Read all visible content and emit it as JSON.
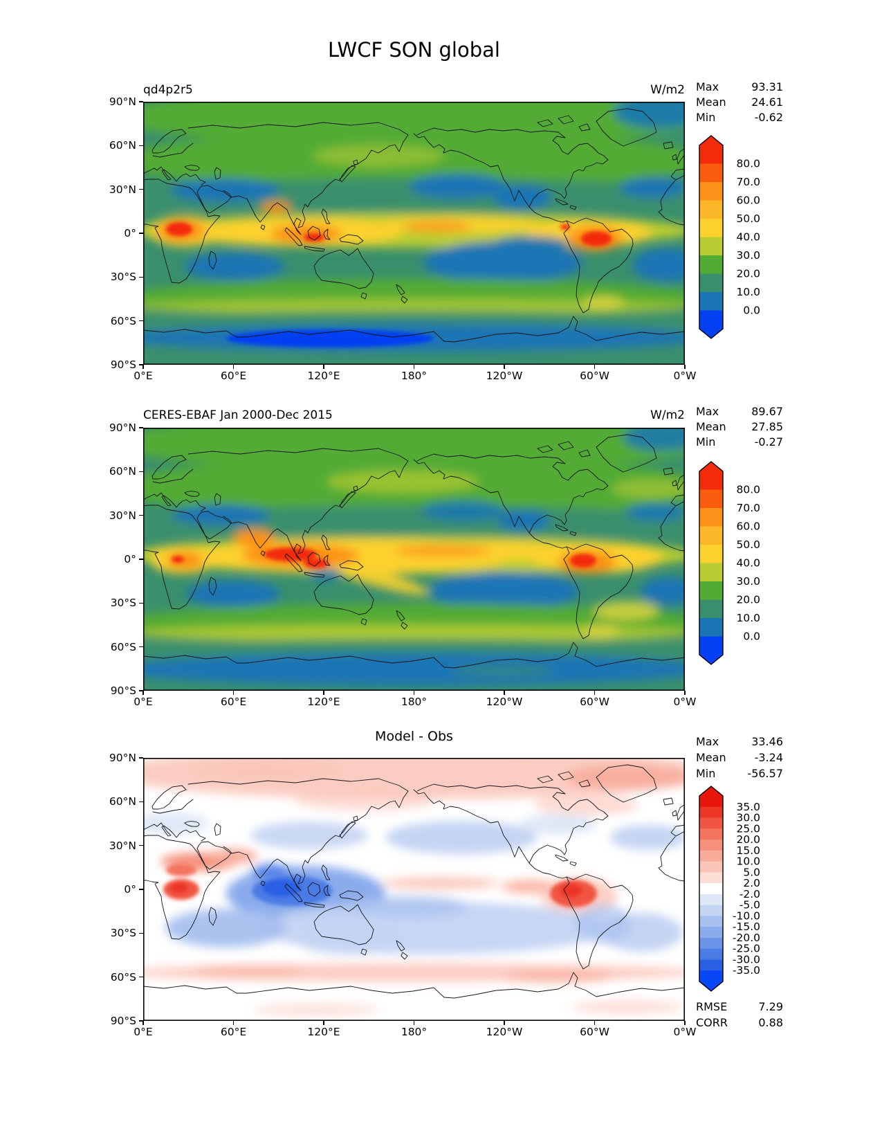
{
  "figure": {
    "title": "LWCF SON global"
  },
  "axes": {
    "xticks": [
      "0°E",
      "60°E",
      "120°E",
      "180°",
      "120°W",
      "60°W",
      "0°W"
    ],
    "yticks": [
      "90°N",
      "60°N",
      "30°N",
      "0°",
      "30°S",
      "60°S",
      "90°S"
    ]
  },
  "panels": [
    {
      "id": "model",
      "title": "qd4p2r5",
      "units": "W/m2",
      "stats": [
        {
          "label": "Max",
          "value": "93.31"
        },
        {
          "label": "Mean",
          "value": "24.61"
        },
        {
          "label": "Min",
          "value": "-0.62"
        }
      ],
      "colorbar": {
        "ticks": [
          "80.0",
          "70.0",
          "60.0",
          "50.0",
          "40.0",
          "30.0",
          "20.0",
          "10.0",
          "0.0"
        ],
        "colors_top_to_bottom": [
          "#f32c0c",
          "#fb5c0d",
          "#fc9219",
          "#fdb72a",
          "#fcd12d",
          "#b9cc33",
          "#53ab35",
          "#3a8f6d",
          "#1a75b4",
          "#0540f2"
        ]
      }
    },
    {
      "id": "obs",
      "title": "CERES-EBAF Jan 2000-Dec 2015",
      "units": "W/m2",
      "stats": [
        {
          "label": "Max",
          "value": "89.67"
        },
        {
          "label": "Mean",
          "value": "27.85"
        },
        {
          "label": "Min",
          "value": "-0.27"
        }
      ],
      "colorbar": {
        "ticks": [
          "80.0",
          "70.0",
          "60.0",
          "50.0",
          "40.0",
          "30.0",
          "20.0",
          "10.0",
          "0.0"
        ],
        "colors_top_to_bottom": [
          "#f32c0c",
          "#fb5c0d",
          "#fc9219",
          "#fdb72a",
          "#fcd12d",
          "#b9cc33",
          "#53ab35",
          "#3a8f6d",
          "#1a75b4",
          "#0540f2"
        ]
      }
    },
    {
      "id": "diff",
      "title": "Model - Obs",
      "stats": [
        {
          "label": "Max",
          "value": "33.46"
        },
        {
          "label": "Mean",
          "value": "-3.24"
        },
        {
          "label": "Min",
          "value": "-56.57"
        }
      ],
      "extra_stats": [
        {
          "label": "RMSE",
          "value": "7.29"
        },
        {
          "label": "CORR",
          "value": "0.88"
        }
      ],
      "colorbar": {
        "ticks": [
          "35.0",
          "30.0",
          "25.0",
          "20.0",
          "15.0",
          "10.0",
          "5.0",
          "2.0",
          "-2.0",
          "-5.0",
          "-10.0",
          "-15.0",
          "-20.0",
          "-25.0",
          "-30.0",
          "-35.0"
        ],
        "colors_top_to_bottom": [
          "#e8160c",
          "#ec3626",
          "#f05443",
          "#f4745f",
          "#f6907c",
          "#f9ab9a",
          "#fbc4b8",
          "#fdded6",
          "#ffffff",
          "#dfe8f7",
          "#c4d4f3",
          "#a8c0ef",
          "#8aabec",
          "#6b94e8",
          "#4b7ce5",
          "#2a61e4",
          "#0847f5"
        ]
      }
    }
  ],
  "chart_data": [
    {
      "type": "heatmap",
      "subtype": "filled-contour-world-map",
      "variable": "LWCF",
      "season": "SON",
      "region": "global",
      "title": "qd4p2r5",
      "units": "W/m2",
      "stats": {
        "max": 93.31,
        "mean": 24.61,
        "min": -0.62
      },
      "levels": [
        0,
        10,
        20,
        30,
        40,
        50,
        60,
        70,
        80
      ],
      "extend": "both",
      "x_ticks": [
        "0°E",
        "60°E",
        "120°E",
        "180°",
        "120°W",
        "60°W",
        "0°W"
      ],
      "y_ticks": [
        "90°N",
        "60°N",
        "30°N",
        "0°",
        "30°S",
        "60°S",
        "90°S"
      ],
      "legend_position": "right"
    },
    {
      "type": "heatmap",
      "subtype": "filled-contour-world-map",
      "variable": "LWCF",
      "season": "SON",
      "region": "global",
      "title": "CERES-EBAF Jan 2000-Dec 2015",
      "units": "W/m2",
      "stats": {
        "max": 89.67,
        "mean": 27.85,
        "min": -0.27
      },
      "levels": [
        0,
        10,
        20,
        30,
        40,
        50,
        60,
        70,
        80
      ],
      "extend": "both",
      "x_ticks": [
        "0°E",
        "60°E",
        "120°E",
        "180°",
        "120°W",
        "60°W",
        "0°W"
      ],
      "y_ticks": [
        "90°N",
        "60°N",
        "30°N",
        "0°",
        "30°S",
        "60°S",
        "90°S"
      ],
      "legend_position": "right"
    },
    {
      "type": "heatmap",
      "subtype": "filled-contour-world-map-difference",
      "title": "Model - Obs",
      "stats": {
        "max": 33.46,
        "mean": -3.24,
        "min": -56.57,
        "rmse": 7.29,
        "corr": 0.88
      },
      "levels": [
        -35,
        -30,
        -25,
        -20,
        -15,
        -10,
        -5,
        -2,
        2,
        5,
        10,
        15,
        20,
        25,
        30,
        35
      ],
      "extend": "both",
      "x_ticks": [
        "0°E",
        "60°E",
        "120°E",
        "180°",
        "120°W",
        "60°W",
        "0°W"
      ],
      "y_ticks": [
        "90°N",
        "60°N",
        "30°N",
        "0°",
        "30°S",
        "60°S",
        "90°S"
      ],
      "legend_position": "right"
    }
  ]
}
